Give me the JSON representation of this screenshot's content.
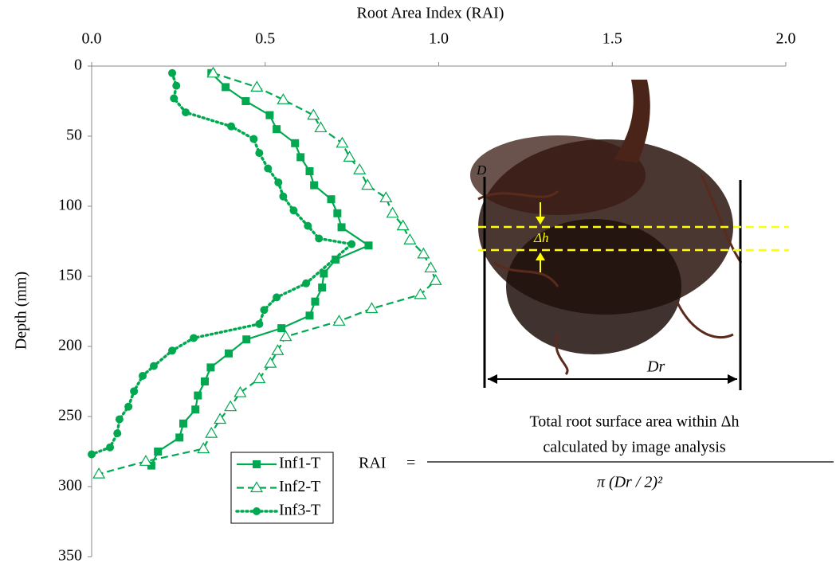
{
  "chart_data": {
    "type": "profile",
    "x_label": "Root Area Index (RAI)",
    "y_label": "Depth (mm)",
    "xlim": [
      0,
      2
    ],
    "xticks": [
      {
        "value": 0,
        "label": "0.0"
      },
      0.5,
      {
        "value": 1,
        "label": "1.0"
      },
      1.5,
      {
        "value": 2,
        "label": "2.0"
      }
    ],
    "ylim": [
      0,
      350
    ],
    "yticks": [
      0,
      50,
      100,
      150,
      200,
      250,
      300,
      350
    ],
    "y_inverted": true,
    "x_axis_position": "top",
    "grid": false,
    "series": [
      {
        "name": "Inf1-T",
        "color": "#00a850",
        "marker": "square",
        "line_style": "solid",
        "x": [
          0.345,
          0.386,
          0.444,
          0.513,
          0.533,
          0.586,
          0.602,
          0.628,
          0.641,
          0.69,
          0.708,
          0.72,
          0.798,
          0.703,
          0.669,
          0.664,
          0.644,
          0.628,
          0.547,
          0.446,
          0.395,
          0.343,
          0.326,
          0.306,
          0.299,
          0.264,
          0.253,
          0.191,
          0.172
        ],
        "y": [
          5,
          15,
          25,
          35,
          45,
          55,
          65,
          75,
          85,
          95,
          105,
          115,
          128,
          138,
          148,
          158,
          168,
          178,
          187,
          195,
          205,
          215,
          225,
          235,
          245,
          255,
          265,
          275,
          285
        ]
      },
      {
        "name": "Inf2-T",
        "color": "#00a850",
        "marker": "triangle",
        "line_style": "dashed",
        "x": [
          0.35,
          0.476,
          0.552,
          0.639,
          0.66,
          0.722,
          0.743,
          0.772,
          0.795,
          0.848,
          0.867,
          0.897,
          0.917,
          0.956,
          0.977,
          0.991,
          0.947,
          0.807,
          0.713,
          0.559,
          0.536,
          0.515,
          0.483,
          0.428,
          0.4,
          0.37,
          0.345,
          0.322,
          0.156,
          0.021
        ],
        "y": [
          5,
          15,
          24,
          35,
          44,
          55,
          65,
          74,
          85,
          94,
          105,
          114,
          124,
          134,
          144,
          153,
          163,
          173,
          182,
          193,
          203,
          212,
          223,
          233,
          243,
          252,
          262,
          273,
          282,
          291
        ]
      },
      {
        "name": "Inf3-T",
        "color": "#00a850",
        "marker": "circle",
        "line_style": "dotted",
        "x": [
          0.232,
          0.244,
          0.237,
          0.271,
          0.402,
          0.467,
          0.483,
          0.508,
          0.538,
          0.552,
          0.582,
          0.623,
          0.655,
          0.749,
          0.618,
          0.533,
          0.497,
          0.483,
          0.294,
          0.232,
          0.179,
          0.147,
          0.122,
          0.106,
          0.08,
          0.074,
          0.053,
          0
        ],
        "y": [
          5,
          14,
          23,
          33,
          43,
          52,
          62,
          73,
          83,
          93,
          103,
          114,
          123,
          127,
          155,
          165,
          174,
          184,
          194,
          203,
          214,
          221,
          232,
          243,
          252,
          262,
          272,
          277
        ]
      }
    ]
  },
  "annotations": {
    "delta_h": "Δh",
    "d_left": "D",
    "d_r": "Dr",
    "formula": {
      "lhs": "RAI",
      "equals": "=",
      "numerator_1": "Total root surface area within Δh",
      "numerator_2": "calculated by image analysis",
      "denominator": "π (Dr / 2)²"
    }
  }
}
